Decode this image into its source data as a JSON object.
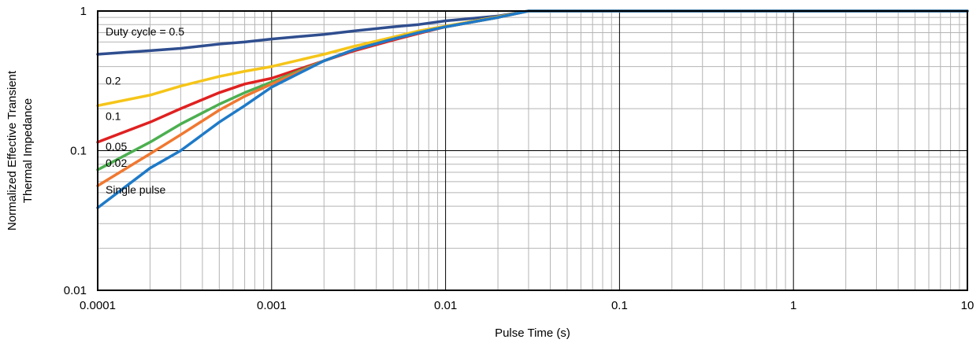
{
  "chart_data": {
    "type": "line",
    "title": "",
    "xlabel": "Pulse Time (s)",
    "ylabel_lines": [
      "Normalized Effective Transient",
      "Thermal Impedance"
    ],
    "x_scale": "log",
    "y_scale": "log",
    "xlim": [
      0.0001,
      10
    ],
    "ylim": [
      0.01,
      1
    ],
    "grid": true,
    "legend": "none",
    "x_ticks": [
      0.0001,
      0.001,
      0.01,
      0.1,
      1,
      10
    ],
    "x_tick_labels": [
      "0.0001",
      "0.001",
      "0.01",
      "0.1",
      "1",
      "10"
    ],
    "y_ticks": [
      0.01,
      0.1,
      1
    ],
    "y_tick_labels": [
      "0.01",
      "0.1",
      "1"
    ],
    "annotations": [
      {
        "text": "Duty cycle = 0.5",
        "series": 0
      },
      {
        "text": "0.2",
        "series": 1
      },
      {
        "text": "0.1",
        "series": 2
      },
      {
        "text": "0.05",
        "series": 3
      },
      {
        "text": "0.02",
        "series": 4
      },
      {
        "text": "Single pulse",
        "series": 5
      }
    ],
    "series": [
      {
        "color": "#2F4E8F",
        "x": [
          0.0001,
          0.0002,
          0.0003,
          0.0005,
          0.0007,
          0.001,
          0.002,
          0.003,
          0.005,
          0.007,
          0.01,
          0.02,
          0.03,
          0.1,
          1,
          10
        ],
        "y": [
          0.49,
          0.52,
          0.54,
          0.58,
          0.6,
          0.63,
          0.68,
          0.72,
          0.77,
          0.8,
          0.85,
          0.92,
          1.0,
          1.0,
          1.0,
          1.0
        ]
      },
      {
        "color": "#F5C518",
        "x": [
          0.0001,
          0.0002,
          0.0003,
          0.0005,
          0.0007,
          0.001,
          0.002,
          0.003,
          0.005,
          0.007,
          0.01,
          0.02,
          0.03,
          0.1,
          1,
          10
        ],
        "y": [
          0.21,
          0.25,
          0.29,
          0.34,
          0.37,
          0.4,
          0.49,
          0.56,
          0.65,
          0.72,
          0.78,
          0.91,
          1.0,
          1.0,
          1.0,
          1.0
        ]
      },
      {
        "color": "#E02020",
        "x": [
          0.0001,
          0.0002,
          0.0003,
          0.0005,
          0.0007,
          0.001,
          0.002,
          0.003,
          0.005,
          0.007,
          0.01,
          0.02,
          0.03,
          0.1,
          1,
          10
        ],
        "y": [
          0.115,
          0.16,
          0.2,
          0.26,
          0.3,
          0.33,
          0.44,
          0.52,
          0.62,
          0.69,
          0.77,
          0.9,
          1.0,
          1.0,
          1.0,
          1.0
        ]
      },
      {
        "color": "#4CAF50",
        "x": [
          0.0001,
          0.0002,
          0.0003,
          0.0005,
          0.0007,
          0.001,
          0.002,
          0.003,
          0.005,
          0.007,
          0.01,
          0.02,
          0.03,
          0.1,
          1,
          10
        ],
        "y": [
          0.073,
          0.115,
          0.155,
          0.215,
          0.26,
          0.31,
          0.44,
          0.53,
          0.63,
          0.7,
          0.77,
          0.9,
          1.0,
          1.0,
          1.0,
          1.0
        ]
      },
      {
        "color": "#F07830",
        "x": [
          0.0001,
          0.0002,
          0.0003,
          0.0005,
          0.0007,
          0.001,
          0.002,
          0.003,
          0.005,
          0.007,
          0.01,
          0.02,
          0.03,
          0.1,
          1,
          10
        ],
        "y": [
          0.056,
          0.095,
          0.13,
          0.195,
          0.245,
          0.3,
          0.44,
          0.53,
          0.63,
          0.7,
          0.77,
          0.9,
          1.0,
          1.0,
          1.0,
          1.0
        ]
      },
      {
        "color": "#1E7AC8",
        "x": [
          0.0001,
          0.0002,
          0.0003,
          0.0005,
          0.0007,
          0.001,
          0.002,
          0.003,
          0.005,
          0.007,
          0.01,
          0.02,
          0.03,
          0.1,
          1,
          10
        ],
        "y": [
          0.039,
          0.075,
          0.1,
          0.16,
          0.21,
          0.285,
          0.44,
          0.53,
          0.63,
          0.7,
          0.77,
          0.9,
          1.0,
          1.0,
          1.0,
          1.0
        ]
      }
    ]
  }
}
